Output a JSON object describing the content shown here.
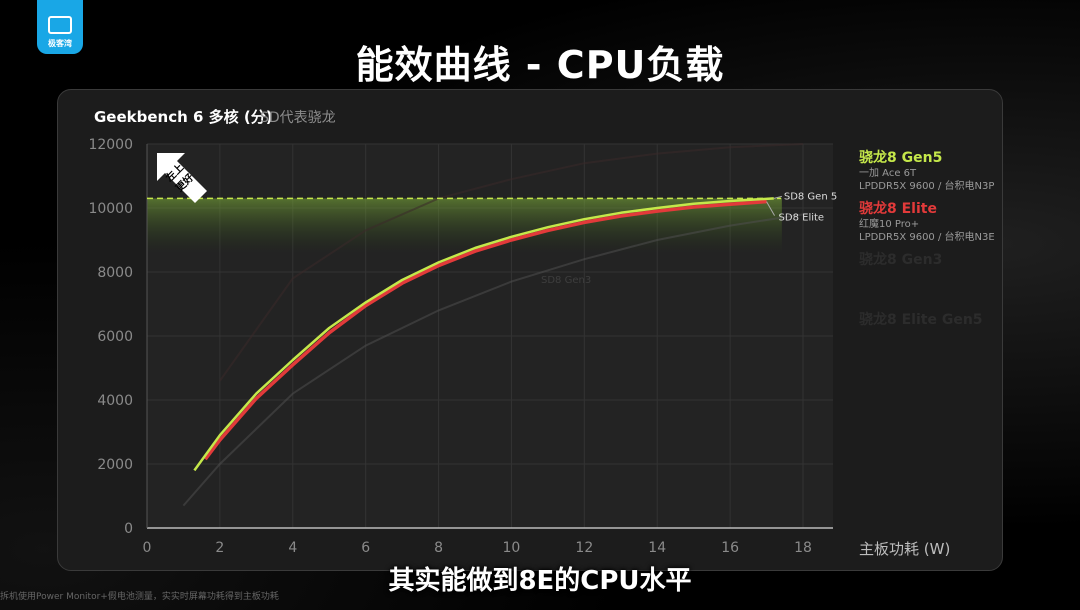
{
  "logo": {
    "text": "极客湾"
  },
  "slide_title": "能效曲线 - CPU负载",
  "caption": "其实能做到8E的CPU水平",
  "footnote": "拆机使用Power Monitor+假电池测量，实实时屏幕功耗得到主板功耗",
  "better_badge": {
    "line1": "左上",
    "line2": "更好"
  },
  "colors": {
    "gen5": "#c5e84a",
    "elite": "#e23a3a",
    "gen3": "#5e5e5e",
    "elite_gen5_faded": "#3b2a2a",
    "bg": "#000000",
    "panel": "#1c1c1c"
  },
  "legend": [
    {
      "name": "骁龙8 Gen5",
      "device": "一加 Ace 6T",
      "spec": "LPDDR5X 9600 / 台积电N3P",
      "color": "#c5e84a",
      "faded": false
    },
    {
      "name": "骁龙8 Elite",
      "device": "红魔10 Pro+",
      "spec": "LPDDR5X 9600 / 台积电N3E",
      "color": "#e23a3a",
      "faded": false
    },
    {
      "name": "骁龙8 Gen3",
      "device": "",
      "spec": "",
      "color": "#2c2c2c",
      "faded": true
    },
    {
      "name": "骁龙8 Elite Gen5",
      "device": "",
      "spec": "",
      "color": "#3b2a2a",
      "faded": true
    }
  ],
  "chart_data": {
    "type": "line",
    "title": "Geekbench 6 多核 (分)",
    "subtitle": "SD代表骁龙",
    "xlabel": "主板功耗 (W)",
    "ylabel": "",
    "xlim": [
      0,
      18
    ],
    "ylim": [
      0,
      12000
    ],
    "x_ticks": [
      0,
      2,
      4,
      6,
      8,
      10,
      12,
      14,
      16,
      18
    ],
    "y_ticks": [
      0,
      2000,
      4000,
      6000,
      8000,
      10000,
      12000
    ],
    "grid": true,
    "reference_line": {
      "y": 10300,
      "style": "dashed",
      "color": "#c5e84a"
    },
    "series": [
      {
        "name": "SD8 Gen 5",
        "label": "SD8 Gen 5",
        "color": "#c5e84a",
        "x": [
          1.3,
          2,
          3,
          4,
          5,
          6,
          7,
          8,
          9,
          10,
          11,
          12,
          13,
          14,
          15,
          16,
          17.2
        ],
        "y": [
          1800,
          2900,
          4200,
          5250,
          6250,
          7050,
          7750,
          8300,
          8750,
          9100,
          9400,
          9650,
          9850,
          10000,
          10130,
          10220,
          10300
        ]
      },
      {
        "name": "SD8 Elite",
        "label": "SD8 Elite",
        "color": "#e23a3a",
        "x": [
          1.6,
          2,
          3,
          4,
          5,
          6,
          7,
          8,
          9,
          10,
          11,
          12,
          13,
          14,
          15,
          16,
          17
        ],
        "y": [
          2150,
          2750,
          4050,
          5100,
          6100,
          6950,
          7650,
          8200,
          8650,
          9000,
          9300,
          9550,
          9750,
          9900,
          10030,
          10120,
          10200
        ]
      },
      {
        "name": "SD8 Gen3",
        "label": "SD8 Gen3",
        "color": "#4f4f4f",
        "faded": true,
        "x": [
          1,
          2,
          4,
          6,
          8,
          10,
          12,
          14,
          16,
          18
        ],
        "y": [
          700,
          2000,
          4200,
          5700,
          6800,
          7700,
          8400,
          9000,
          9450,
          9800
        ]
      },
      {
        "name": "骁龙8 Elite Gen5",
        "color": "#3b2a2a",
        "faded": true,
        "x": [
          2,
          4,
          6,
          8,
          10,
          12,
          14,
          16,
          18
        ],
        "y": [
          4600,
          7800,
          9300,
          10300,
          10900,
          11400,
          11700,
          11900,
          12000
        ]
      }
    ]
  }
}
